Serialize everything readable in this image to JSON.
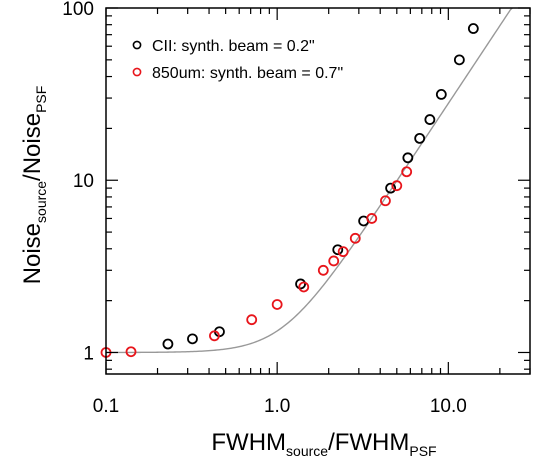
{
  "chart_data": {
    "type": "scatter",
    "x_scale": "log",
    "y_scale": "log",
    "xlim": [
      0.1,
      30
    ],
    "ylim": [
      0.75,
      100
    ],
    "x_ticks": [
      {
        "value": 0.1,
        "label": "0.1"
      },
      {
        "value": 1,
        "label": "1.0"
      },
      {
        "value": 10,
        "label": "10.0"
      }
    ],
    "y_ticks": [
      {
        "value": 1,
        "label": "1"
      },
      {
        "value": 10,
        "label": "10"
      },
      {
        "value": 100,
        "label": "100"
      }
    ],
    "xlabel": {
      "main": "FWHM",
      "sub": "source",
      "mid": "/FWHM",
      "sub2": "PSF"
    },
    "ylabel": {
      "main": "Noise",
      "sub": "source",
      "mid": "/Noise",
      "sub2": "PSF"
    },
    "legend_position": "top-left",
    "grid": false,
    "curve_color": "#999999",
    "series": [
      {
        "name": "CII: synth. beam = 0.2\"",
        "color": "#000000",
        "x": [
          0.23,
          0.32,
          0.46,
          1.37,
          2.26,
          3.2,
          4.6,
          5.8,
          6.8,
          7.8,
          9.1,
          11.6,
          14.0
        ],
        "y": [
          1.12,
          1.2,
          1.32,
          2.5,
          3.95,
          5.8,
          9.0,
          13.5,
          17.5,
          22.5,
          31.5,
          50.0,
          76.0
        ]
      },
      {
        "name": "850um: synth. beam = 0.7\"",
        "color": "#e8151b",
        "x": [
          0.1,
          0.14,
          0.43,
          0.71,
          1.0,
          1.43,
          1.86,
          2.14,
          2.43,
          2.86,
          3.57,
          4.29,
          5.0,
          5.71
        ],
        "y": [
          1.0,
          1.01,
          1.25,
          1.55,
          1.9,
          2.4,
          3.0,
          3.4,
          3.85,
          4.6,
          6.0,
          7.6,
          9.3,
          11.2
        ]
      }
    ]
  }
}
